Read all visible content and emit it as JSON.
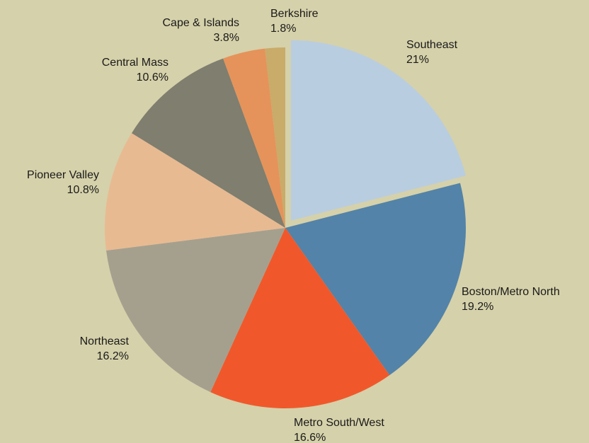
{
  "chart_data": {
    "type": "pie",
    "categories": [
      "Southeast",
      "Boston/Metro North",
      "Metro South/West",
      "Northeast",
      "Pioneer Valley",
      "Central Mass",
      "Cape & Islands",
      "Berkshire"
    ],
    "values": [
      21,
      19.2,
      16.6,
      16.2,
      10.8,
      10.6,
      3.8,
      1.8
    ],
    "value_labels": [
      "21%",
      "19.2%",
      "16.6%",
      "16.2%",
      "10.8%",
      "10.6%",
      "3.8%",
      "1.8%"
    ],
    "colors": [
      "#b9cde0",
      "#5383a8",
      "#f0582b",
      "#a5a08e",
      "#e8ba92",
      "#7f7e6f",
      "#e5935a",
      "#c9ab6a"
    ]
  }
}
